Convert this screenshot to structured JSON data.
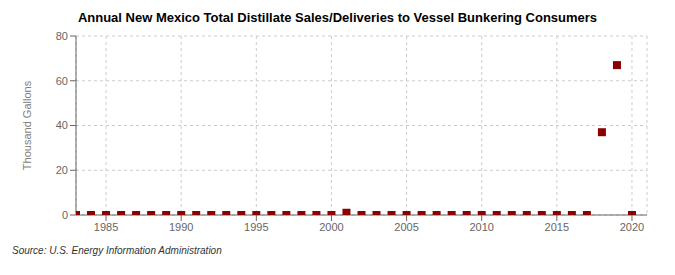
{
  "chart_data": {
    "type": "scatter",
    "title": "Annual New Mexico Total Distillate Sales/Deliveries to Vessel Bunkering Consumers",
    "ylabel": "Thousand Gallons",
    "source": "Source: U.S. Energy Information Administration",
    "x": [
      1983,
      1984,
      1985,
      1986,
      1987,
      1988,
      1989,
      1990,
      1991,
      1992,
      1993,
      1994,
      1995,
      1996,
      1997,
      1998,
      1999,
      2000,
      2001,
      2002,
      2003,
      2004,
      2005,
      2006,
      2007,
      2008,
      2009,
      2010,
      2011,
      2012,
      2013,
      2014,
      2015,
      2016,
      2017,
      2018,
      2019,
      2020
    ],
    "values": [
      0,
      0,
      0,
      0,
      0,
      0,
      0,
      0,
      0,
      0,
      0,
      0,
      0,
      0,
      0,
      0,
      0,
      0,
      1,
      0,
      0,
      0,
      0,
      0,
      0,
      0,
      0,
      0,
      0,
      0,
      0,
      0,
      0,
      0,
      0,
      37,
      67,
      0
    ],
    "color": "#8b0000",
    "marker": "square",
    "xlim": [
      1983,
      2021
    ],
    "ylim": [
      0,
      80
    ],
    "xticks": [
      1985,
      1990,
      1995,
      2000,
      2005,
      2010,
      2015,
      2020
    ],
    "yticks": [
      0,
      20,
      40,
      60,
      80
    ],
    "grid": true
  }
}
